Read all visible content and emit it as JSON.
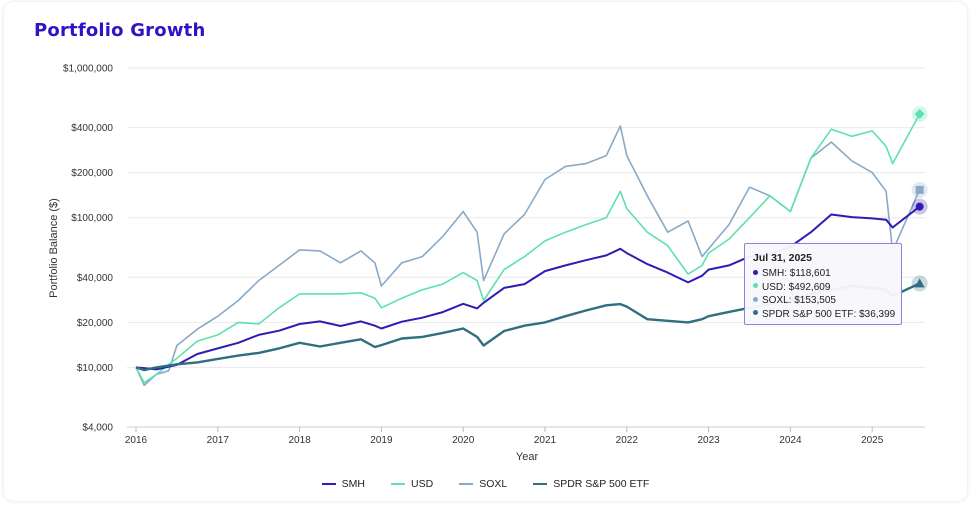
{
  "title": "Portfolio Growth",
  "colors": {
    "SMH": "#2c1db3",
    "USD": "#5fe0b0",
    "SOXL": "#8aa9c6",
    "SPY": "#2f6f7f"
  },
  "tooltip": {
    "date": "Jul 31, 2025",
    "rows": [
      {
        "text": "SMH: $118,601",
        "color": "#2c1db3"
      },
      {
        "text": "USD: $492,609",
        "color": "#5fe0b0"
      },
      {
        "text": "SOXL: $153,505",
        "color": "#8aa9c6"
      },
      {
        "text": "SPDR S&P 500 ETF: $36,399",
        "color": "#2f6f7f"
      }
    ]
  },
  "chart_data": {
    "type": "line",
    "title": "Portfolio Growth",
    "xlabel": "Year",
    "ylabel": "Portfolio Balance ($)",
    "yscale": "log",
    "ylim": [
      4000,
      1000000
    ],
    "xlim": [
      2016.0,
      2025.67
    ],
    "yticks": [
      {
        "v": 4000,
        "label": "$4,000"
      },
      {
        "v": 10000,
        "label": "$10,000"
      },
      {
        "v": 20000,
        "label": "$20,000"
      },
      {
        "v": 40000,
        "label": "$40,000"
      },
      {
        "v": 100000,
        "label": "$100,000"
      },
      {
        "v": 200000,
        "label": "$200,000"
      },
      {
        "v": 400000,
        "label": "$400,000"
      },
      {
        "v": 1000000,
        "label": "$1,000,000"
      }
    ],
    "xticks": [
      {
        "v": 2016,
        "label": "2016"
      },
      {
        "v": 2017,
        "label": "2017"
      },
      {
        "v": 2018,
        "label": "2018"
      },
      {
        "v": 2019,
        "label": "2019"
      },
      {
        "v": 2020,
        "label": "2020"
      },
      {
        "v": 2021,
        "label": "2021"
      },
      {
        "v": 2022,
        "label": "2022"
      },
      {
        "v": 2023,
        "label": "2023"
      },
      {
        "v": 2024,
        "label": "2024"
      },
      {
        "v": 2025,
        "label": "2025"
      }
    ],
    "grid": true,
    "legend_position": "bottom",
    "series": [
      {
        "name": "SMH",
        "marker": "circle",
        "x": [
          2016.0,
          2016.25,
          2016.5,
          2016.75,
          2017.0,
          2017.25,
          2017.5,
          2017.75,
          2018.0,
          2018.25,
          2018.5,
          2018.75,
          2018.92,
          2019.0,
          2019.25,
          2019.5,
          2019.75,
          2020.0,
          2020.17,
          2020.25,
          2020.5,
          2020.75,
          2021.0,
          2021.25,
          2021.5,
          2021.75,
          2021.92,
          2022.0,
          2022.25,
          2022.5,
          2022.75,
          2022.92,
          2023.0,
          2023.25,
          2023.5,
          2023.75,
          2024.0,
          2024.25,
          2024.5,
          2024.75,
          2025.0,
          2025.17,
          2025.25,
          2025.58
        ],
        "y": [
          10000,
          9700,
          10400,
          12300,
          13400,
          14600,
          16500,
          17600,
          19500,
          20300,
          18900,
          20300,
          19000,
          18200,
          20200,
          21500,
          23400,
          26600,
          24800,
          27000,
          34000,
          36000,
          44000,
          48000,
          52000,
          56000,
          62000,
          58000,
          49000,
          43000,
          37000,
          41000,
          45000,
          48000,
          55000,
          57000,
          64000,
          80000,
          105000,
          101000,
          99000,
          97000,
          86000,
          118601
        ]
      },
      {
        "name": "USD",
        "marker": "diamond",
        "x": [
          2016.0,
          2016.1,
          2016.25,
          2016.5,
          2016.75,
          2017.0,
          2017.25,
          2017.5,
          2017.75,
          2018.0,
          2018.25,
          2018.5,
          2018.75,
          2018.92,
          2019.0,
          2019.25,
          2019.5,
          2019.75,
          2020.0,
          2020.17,
          2020.25,
          2020.5,
          2020.75,
          2021.0,
          2021.25,
          2021.5,
          2021.75,
          2021.92,
          2022.0,
          2022.25,
          2022.5,
          2022.75,
          2022.92,
          2023.0,
          2023.25,
          2023.5,
          2023.75,
          2024.0,
          2024.25,
          2024.5,
          2024.75,
          2025.0,
          2025.17,
          2025.25,
          2025.58
        ],
        "y": [
          10000,
          7900,
          9000,
          11500,
          15000,
          16500,
          20000,
          19500,
          25000,
          31000,
          31000,
          31000,
          31500,
          29000,
          25000,
          29000,
          33000,
          36000,
          43000,
          38000,
          28000,
          45000,
          55000,
          70000,
          80000,
          90000,
          100000,
          150000,
          115000,
          80000,
          65000,
          42000,
          48000,
          58000,
          72000,
          100000,
          140000,
          110000,
          250000,
          390000,
          350000,
          380000,
          300000,
          230000,
          492609
        ]
      },
      {
        "name": "SOXL",
        "marker": "square",
        "x": [
          2016.0,
          2016.1,
          2016.25,
          2016.4,
          2016.5,
          2016.75,
          2017.0,
          2017.25,
          2017.5,
          2017.75,
          2018.0,
          2018.25,
          2018.5,
          2018.75,
          2018.92,
          2019.0,
          2019.25,
          2019.5,
          2019.75,
          2020.0,
          2020.17,
          2020.25,
          2020.5,
          2020.75,
          2021.0,
          2021.25,
          2021.5,
          2021.75,
          2021.92,
          2022.0,
          2022.25,
          2022.5,
          2022.75,
          2022.92,
          2023.0,
          2023.25,
          2023.5,
          2023.75,
          2024.0,
          2024.25,
          2024.5,
          2024.75,
          2025.0,
          2025.17,
          2025.25,
          2025.58
        ],
        "y": [
          10000,
          7600,
          9000,
          9500,
          14000,
          18000,
          22000,
          28000,
          38000,
          48000,
          61000,
          60000,
          50000,
          60000,
          50000,
          35000,
          50000,
          55000,
          75000,
          110000,
          80000,
          38000,
          78000,
          105000,
          180000,
          220000,
          230000,
          260000,
          410000,
          260000,
          140000,
          80000,
          95000,
          55000,
          62000,
          90000,
          160000,
          140000,
          110000,
          250000,
          320000,
          240000,
          200000,
          150000,
          60000,
          153505
        ]
      },
      {
        "name": "SPDR S&P 500 ETF",
        "marker": "triangle",
        "x": [
          2016.0,
          2016.1,
          2016.25,
          2016.5,
          2016.75,
          2017.0,
          2017.25,
          2017.5,
          2017.75,
          2018.0,
          2018.25,
          2018.5,
          2018.75,
          2018.92,
          2019.0,
          2019.25,
          2019.5,
          2019.75,
          2020.0,
          2020.17,
          2020.25,
          2020.5,
          2020.75,
          2021.0,
          2021.25,
          2021.5,
          2021.75,
          2021.92,
          2022.0,
          2022.25,
          2022.5,
          2022.75,
          2022.92,
          2023.0,
          2023.25,
          2023.5,
          2023.75,
          2024.0,
          2024.25,
          2024.5,
          2024.75,
          2025.0,
          2025.17,
          2025.25,
          2025.58
        ],
        "y": [
          10000,
          9600,
          10000,
          10500,
          10800,
          11400,
          12000,
          12500,
          13400,
          14600,
          13800,
          14600,
          15400,
          13700,
          14100,
          15600,
          16000,
          17000,
          18200,
          16000,
          14000,
          17500,
          19000,
          20000,
          22000,
          24000,
          26000,
          26500,
          25500,
          21000,
          20500,
          20000,
          21000,
          22000,
          23500,
          25000,
          26500,
          28000,
          31000,
          33000,
          35000,
          34000,
          33000,
          30000,
          36399
        ]
      }
    ]
  }
}
